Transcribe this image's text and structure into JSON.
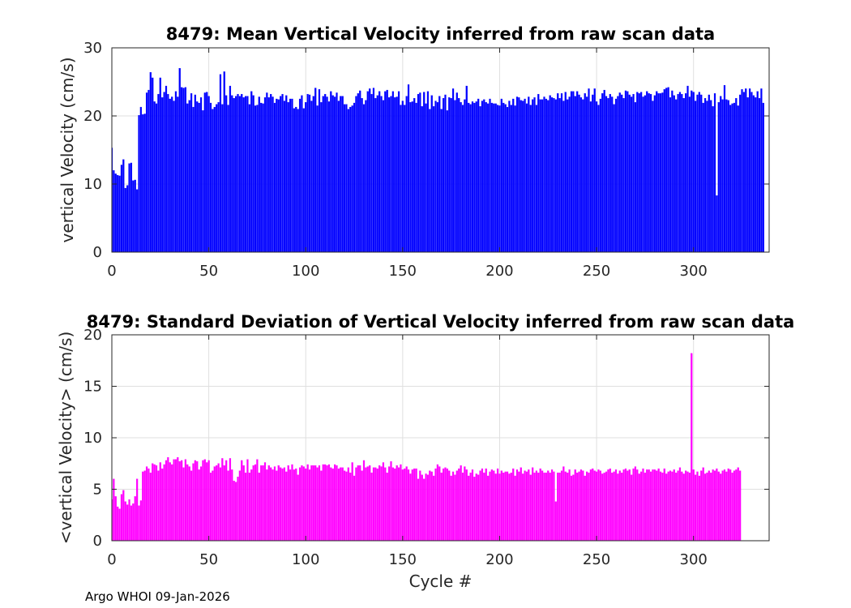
{
  "footer": "Argo WHOI 09-Jan-2026",
  "chart_data": [
    {
      "type": "bar",
      "title": "8479: Mean Vertical Velocity inferred from raw scan data",
      "xlabel": "",
      "ylabel": "vertical Velocity (cm/s)",
      "xlim": [
        0,
        339
      ],
      "ylim": [
        0,
        30
      ],
      "xticks": [
        0,
        50,
        100,
        150,
        200,
        250,
        300
      ],
      "yticks": [
        0,
        10,
        20,
        30
      ],
      "grid": true,
      "color": "#0000ff",
      "x_start": 0,
      "values": [
        15.3,
        12.0,
        11.5,
        11.3,
        11.2,
        12.8,
        13.6,
        9.4,
        9.8,
        13.0,
        13.1,
        10.5,
        10.6,
        9.2,
        20.1,
        21.3,
        20.2,
        20.3,
        23.4,
        23.8,
        26.4,
        25.6,
        22.1,
        21.8,
        23.2,
        25.6,
        22.7,
        23.5,
        24.4,
        23.2,
        22.5,
        22.8,
        22.2,
        23.6,
        22.8,
        27.0,
        24.2,
        24.1,
        24.2,
        21.8,
        22.3,
        23.3,
        21.3,
        23.1,
        22.1,
        21.9,
        22.7,
        20.8,
        23.4,
        23.5,
        22.9,
        21.9,
        21.0,
        21.3,
        21.7,
        22.0,
        26.1,
        21.7,
        26.5,
        23.0,
        21.6,
        24.4,
        23.0,
        22.6,
        22.9,
        23.2,
        22.9,
        23.2,
        22.7,
        22.9,
        22.9,
        21.7,
        23.6,
        23.0,
        21.5,
        21.6,
        22.8,
        21.9,
        21.8,
        22.7,
        23.4,
        22.7,
        23.2,
        22.8,
        21.9,
        22.5,
        22.4,
        22.9,
        23.2,
        22.2,
        23.0,
        22.0,
        22.5,
        22.5,
        21.1,
        21.3,
        21.0,
        22.5,
        23.0,
        21.1,
        22.0,
        23.2,
        23.1,
        22.2,
        22.9,
        24.1,
        21.5,
        23.9,
        22.0,
        22.9,
        23.2,
        22.8,
        22.1,
        23.6,
        23.0,
        22.8,
        23.4,
        22.2,
        22.9,
        22.9,
        21.7,
        21.7,
        21.0,
        21.3,
        21.5,
        21.9,
        22.9,
        23.3,
        23.7,
        22.6,
        21.7,
        22.3,
        23.6,
        24.0,
        23.2,
        24.1,
        22.6,
        23.0,
        23.6,
        22.9,
        22.3,
        23.6,
        23.8,
        22.7,
        22.9,
        23.6,
        22.7,
        22.8,
        23.6,
        21.6,
        22.2,
        21.6,
        22.9,
        24.6,
        22.0,
        22.1,
        22.6,
        21.9,
        23.2,
        23.4,
        21.4,
        23.5,
        21.8,
        23.6,
        21.0,
        23.0,
        21.4,
        22.2,
        22.0,
        22.9,
        21.0,
        22.6,
        23.1,
        20.8,
        22.7,
        22.6,
        24.0,
        22.3,
        23.4,
        22.6,
        22.0,
        21.6,
        22.4,
        24.4,
        21.9,
        21.7,
        22.1,
        21.9,
        22.1,
        22.5,
        21.4,
        22.2,
        22.4,
        22.0,
        21.8,
        22.5,
        21.9,
        21.8,
        21.8,
        21.6,
        21.5,
        22.5,
        21.9,
        21.7,
        21.3,
        22.2,
        21.6,
        22.5,
        21.5,
        22.8,
        22.7,
        22.3,
        22.2,
        22.5,
        21.8,
        22.8,
        21.6,
        22.4,
        22.7,
        21.6,
        23.2,
        22.4,
        22.4,
        22.8,
        22.5,
        22.3,
        23.0,
        22.7,
        22.6,
        22.4,
        23.3,
        22.6,
        23.3,
        22.2,
        23.5,
        22.4,
        22.8,
        23.6,
        23.6,
        22.9,
        23.6,
        23.1,
        22.7,
        22.4,
        23.3,
        22.8,
        24.0,
        22.1,
        23.1,
        24.0,
        22.1,
        21.6,
        22.5,
        23.3,
        23.8,
        22.9,
        22.6,
        23.2,
        22.8,
        21.7,
        22.5,
        22.9,
        23.4,
        23.1,
        22.6,
        23.7,
        23.6,
        23.1,
        22.8,
        23.2,
        22.0,
        23.5,
        23.3,
        23.5,
        22.8,
        23.0,
        23.6,
        23.3,
        23.2,
        22.2,
        23.0,
        23.6,
        23.3,
        23.3,
        23.4,
        23.9,
        24.1,
        24.2,
        22.7,
        23.7,
        23.0,
        22.4,
        23.2,
        23.5,
        23.2,
        22.6,
        23.3,
        24.4,
        22.8,
        23.7,
        23.5,
        22.2,
        23.1,
        23.5,
        23.1,
        21.9,
        22.6,
        22.2,
        23.1,
        22.3,
        21.4,
        23.3,
        8.3,
        22.0,
        22.9,
        22.4,
        24.5,
        22.4,
        22.3,
        21.6,
        21.8,
        21.9,
        22.6,
        21.5,
        23.1,
        23.9,
        23.5,
        24.0,
        22.7,
        24.0,
        23.5,
        23.0,
        22.7,
        23.6,
        22.6,
        24.0,
        21.9
      ]
    },
    {
      "type": "bar",
      "title": "8479: Standard Deviation of Vertical Velocity inferred from raw scan data",
      "xlabel": "Cycle #",
      "ylabel": "<vertical Velocity> (cm/s)",
      "xlim": [
        0,
        339
      ],
      "ylim": [
        0,
        20
      ],
      "xticks": [
        0,
        50,
        100,
        150,
        200,
        250,
        300
      ],
      "yticks": [
        0,
        5,
        10,
        15,
        20
      ],
      "grid": true,
      "color": "#ff00ff",
      "x_start": 0,
      "values": [
        4.0,
        6.0,
        4.3,
        3.3,
        3.1,
        4.5,
        4.9,
        3.8,
        3.5,
        4.0,
        3.4,
        3.6,
        4.3,
        6.0,
        3.4,
        3.9,
        6.7,
        6.8,
        7.2,
        7.0,
        6.6,
        7.5,
        7.4,
        7.3,
        6.8,
        7.6,
        7.0,
        7.4,
        7.8,
        8.1,
        7.6,
        7.4,
        7.9,
        7.9,
        8.1,
        7.7,
        7.8,
        7.1,
        7.9,
        7.4,
        7.2,
        6.8,
        7.5,
        7.8,
        7.7,
        6.9,
        7.2,
        7.8,
        7.9,
        7.6,
        7.8,
        6.6,
        6.8,
        7.2,
        7.3,
        7.5,
        7.1,
        8.0,
        7.3,
        7.8,
        6.8,
        8.0,
        6.9,
        5.8,
        5.7,
        6.2,
        6.8,
        7.8,
        7.3,
        6.6,
        7.9,
        6.6,
        6.9,
        7.3,
        7.4,
        7.9,
        6.6,
        7.3,
        7.3,
        7.6,
        6.9,
        7.3,
        7.1,
        6.9,
        7.2,
        6.8,
        7.3,
        7.1,
        7.0,
        7.1,
        6.7,
        7.3,
        6.9,
        7.4,
        6.9,
        7.0,
        6.4,
        7.1,
        7.3,
        7.2,
        7.0,
        7.4,
        6.9,
        7.3,
        7.3,
        7.3,
        7.1,
        7.3,
        6.8,
        7.4,
        7.4,
        7.3,
        7.4,
        7.1,
        7.0,
        7.4,
        7.3,
        7.0,
        7.1,
        7.1,
        6.8,
        6.7,
        7.1,
        6.6,
        7.6,
        6.3,
        7.1,
        7.3,
        7.3,
        6.8,
        7.8,
        7.1,
        7.2,
        7.3,
        6.6,
        7.1,
        7.1,
        7.0,
        7.3,
        7.2,
        7.6,
        7.1,
        6.6,
        7.2,
        7.7,
        7.1,
        7.0,
        7.3,
        7.1,
        7.4,
        6.9,
        7.0,
        7.2,
        6.9,
        6.5,
        6.9,
        7.0,
        7.0,
        6.0,
        6.8,
        6.4,
        6.0,
        6.5,
        6.4,
        6.8,
        6.7,
        6.3,
        7.0,
        7.4,
        7.2,
        6.6,
        7.0,
        7.1,
        7.0,
        6.8,
        6.3,
        6.7,
        6.4,
        6.8,
        7.0,
        7.3,
        6.6,
        7.2,
        6.9,
        6.3,
        6.6,
        6.9,
        6.2,
        6.5,
        6.4,
        6.8,
        7.0,
        6.6,
        7.0,
        6.3,
        6.7,
        6.9,
        6.8,
        6.5,
        7.0,
        6.5,
        6.8,
        6.6,
        6.7,
        6.7,
        6.5,
        6.6,
        7.0,
        6.3,
        6.9,
        6.7,
        7.1,
        6.5,
        6.8,
        6.7,
        6.9,
        6.4,
        7.1,
        6.6,
        6.8,
        6.6,
        7.0,
        6.8,
        6.6,
        6.6,
        6.8,
        6.6,
        6.9,
        6.7,
        3.8,
        6.6,
        6.6,
        6.8,
        7.2,
        6.7,
        6.6,
        6.9,
        6.3,
        6.4,
        6.9,
        6.6,
        6.7,
        6.9,
        6.8,
        6.3,
        6.7,
        6.6,
        6.9,
        7.0,
        6.8,
        6.7,
        6.9,
        6.8,
        6.5,
        6.6,
        6.7,
        6.9,
        7.0,
        6.6,
        6.7,
        6.9,
        6.5,
        6.8,
        6.6,
        6.9,
        7.0,
        6.8,
        6.9,
        6.4,
        7.0,
        7.2,
        6.9,
        6.5,
        6.7,
        7.0,
        6.6,
        6.9,
        6.9,
        6.7,
        6.9,
        6.9,
        6.8,
        7.0,
        6.7,
        6.6,
        7.0,
        6.5,
        6.7,
        6.8,
        6.7,
        6.9,
        6.6,
        6.8,
        7.1,
        6.7,
        6.5,
        6.8,
        6.7,
        6.6,
        18.2,
        6.9,
        6.4,
        6.7,
        6.3,
        6.8,
        7.1,
        6.5,
        6.6,
        6.8,
        6.6,
        6.9,
        6.8,
        7.0,
        6.7,
        6.5,
        6.8,
        6.9,
        6.7,
        7.0,
        6.9,
        6.6,
        6.8,
        6.9,
        7.1,
        6.8
      ]
    }
  ]
}
